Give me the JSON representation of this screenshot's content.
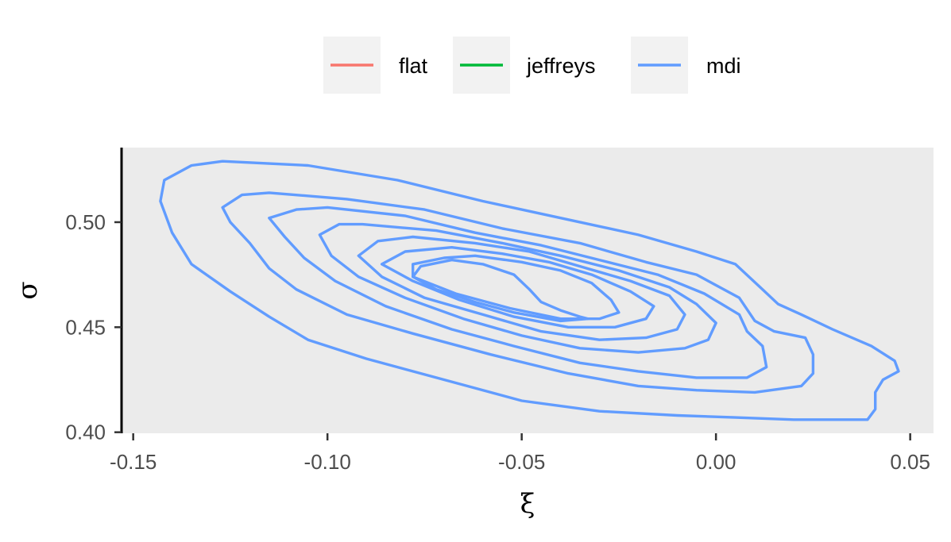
{
  "chart_data": {
    "type": "contour",
    "title": "",
    "xlabel": "ξ",
    "ylabel": "σ",
    "xlim": [
      -0.153,
      0.056
    ],
    "ylim": [
      0.3995,
      0.5355
    ],
    "x_ticks": [
      -0.15,
      -0.1,
      -0.05,
      0.0,
      0.05
    ],
    "x_tick_labels": [
      "-0.15",
      "-0.10",
      "-0.05",
      "0.00",
      "0.05"
    ],
    "y_ticks": [
      0.4,
      0.45,
      0.5
    ],
    "y_tick_labels": [
      "0.40",
      "0.45",
      "0.50"
    ],
    "grid": false,
    "legend_position": "top",
    "legend": [
      {
        "name": "flat",
        "color": "#F8766D"
      },
      {
        "name": "jeffreys",
        "color": "#00BA38"
      },
      {
        "name": "mdi",
        "color": "#619CFF"
      }
    ],
    "series": [
      {
        "name": "mdi",
        "color": "#619CFF",
        "contours": [
          [
            [
              -0.127,
              0.529
            ],
            [
              -0.105,
              0.527
            ],
            [
              -0.082,
              0.52
            ],
            [
              -0.06,
              0.51
            ],
            [
              -0.04,
              0.502
            ],
            [
              -0.02,
              0.494
            ],
            [
              -0.005,
              0.486
            ],
            [
              0.005,
              0.48
            ],
            [
              0.012,
              0.468
            ],
            [
              0.016,
              0.461
            ],
            [
              0.022,
              0.456
            ],
            [
              0.03,
              0.449
            ],
            [
              0.04,
              0.441
            ],
            [
              0.046,
              0.434
            ],
            [
              0.047,
              0.429
            ],
            [
              0.043,
              0.425
            ],
            [
              0.041,
              0.419
            ],
            [
              0.041,
              0.411
            ],
            [
              0.039,
              0.406
            ],
            [
              0.03,
              0.406
            ],
            [
              0.02,
              0.406
            ],
            [
              0.005,
              0.407
            ],
            [
              -0.01,
              0.408
            ],
            [
              -0.03,
              0.41
            ],
            [
              -0.05,
              0.415
            ],
            [
              -0.07,
              0.425
            ],
            [
              -0.09,
              0.435
            ],
            [
              -0.105,
              0.444
            ],
            [
              -0.115,
              0.455
            ],
            [
              -0.125,
              0.467
            ],
            [
              -0.135,
              0.48
            ],
            [
              -0.14,
              0.495
            ],
            [
              -0.143,
              0.51
            ],
            [
              -0.142,
              0.52
            ],
            [
              -0.135,
              0.527
            ],
            [
              -0.127,
              0.529
            ]
          ],
          [
            [
              -0.115,
              0.514
            ],
            [
              -0.095,
              0.511
            ],
            [
              -0.075,
              0.506
            ],
            [
              -0.055,
              0.497
            ],
            [
              -0.035,
              0.49
            ],
            [
              -0.018,
              0.481
            ],
            [
              -0.005,
              0.475
            ],
            [
              0.006,
              0.464
            ],
            [
              0.01,
              0.453
            ],
            [
              0.015,
              0.448
            ],
            [
              0.023,
              0.445
            ],
            [
              0.025,
              0.437
            ],
            [
              0.025,
              0.428
            ],
            [
              0.022,
              0.422
            ],
            [
              0.01,
              0.419
            ],
            [
              -0.005,
              0.42
            ],
            [
              -0.02,
              0.422
            ],
            [
              -0.038,
              0.428
            ],
            [
              -0.058,
              0.437
            ],
            [
              -0.078,
              0.447
            ],
            [
              -0.095,
              0.456
            ],
            [
              -0.108,
              0.468
            ],
            [
              -0.115,
              0.478
            ],
            [
              -0.12,
              0.49
            ],
            [
              -0.125,
              0.5
            ],
            [
              -0.127,
              0.507
            ],
            [
              -0.122,
              0.513
            ],
            [
              -0.115,
              0.514
            ]
          ],
          [
            [
              -0.1,
              0.507
            ],
            [
              -0.08,
              0.503
            ],
            [
              -0.062,
              0.495
            ],
            [
              -0.045,
              0.489
            ],
            [
              -0.03,
              0.482
            ],
            [
              -0.015,
              0.475
            ],
            [
              -0.003,
              0.466
            ],
            [
              0.006,
              0.456
            ],
            [
              0.008,
              0.448
            ],
            [
              0.012,
              0.441
            ],
            [
              0.013,
              0.431
            ],
            [
              0.008,
              0.426
            ],
            [
              -0.005,
              0.426
            ],
            [
              -0.02,
              0.429
            ],
            [
              -0.035,
              0.433
            ],
            [
              -0.052,
              0.441
            ],
            [
              -0.068,
              0.449
            ],
            [
              -0.085,
              0.46
            ],
            [
              -0.098,
              0.472
            ],
            [
              -0.106,
              0.483
            ],
            [
              -0.111,
              0.493
            ],
            [
              -0.115,
              0.502
            ],
            [
              -0.108,
              0.506
            ],
            [
              -0.1,
              0.507
            ]
          ],
          [
            [
              -0.091,
              0.499
            ],
            [
              -0.072,
              0.496
            ],
            [
              -0.055,
              0.49
            ],
            [
              -0.04,
              0.484
            ],
            [
              -0.025,
              0.477
            ],
            [
              -0.012,
              0.469
            ],
            [
              -0.005,
              0.461
            ],
            [
              0.0,
              0.452
            ],
            [
              -0.002,
              0.444
            ],
            [
              -0.008,
              0.44
            ],
            [
              -0.02,
              0.438
            ],
            [
              -0.035,
              0.44
            ],
            [
              -0.05,
              0.446
            ],
            [
              -0.065,
              0.454
            ],
            [
              -0.08,
              0.464
            ],
            [
              -0.092,
              0.474
            ],
            [
              -0.099,
              0.484
            ],
            [
              -0.102,
              0.494
            ],
            [
              -0.097,
              0.499
            ],
            [
              -0.091,
              0.499
            ]
          ],
          [
            [
              -0.078,
              0.493
            ],
            [
              -0.062,
              0.49
            ],
            [
              -0.048,
              0.486
            ],
            [
              -0.035,
              0.479
            ],
            [
              -0.022,
              0.472
            ],
            [
              -0.012,
              0.465
            ],
            [
              -0.008,
              0.456
            ],
            [
              -0.01,
              0.449
            ],
            [
              -0.018,
              0.445
            ],
            [
              -0.03,
              0.444
            ],
            [
              -0.045,
              0.448
            ],
            [
              -0.06,
              0.456
            ],
            [
              -0.075,
              0.464
            ],
            [
              -0.086,
              0.474
            ],
            [
              -0.092,
              0.484
            ],
            [
              -0.087,
              0.491
            ],
            [
              -0.078,
              0.493
            ]
          ],
          [
            [
              -0.068,
              0.488
            ],
            [
              -0.055,
              0.485
            ],
            [
              -0.043,
              0.481
            ],
            [
              -0.032,
              0.475
            ],
            [
              -0.022,
              0.467
            ],
            [
              -0.016,
              0.46
            ],
            [
              -0.018,
              0.454
            ],
            [
              -0.026,
              0.45
            ],
            [
              -0.038,
              0.45
            ],
            [
              -0.052,
              0.455
            ],
            [
              -0.066,
              0.463
            ],
            [
              -0.078,
              0.472
            ],
            [
              -0.086,
              0.48
            ],
            [
              -0.08,
              0.486
            ],
            [
              -0.068,
              0.488
            ]
          ],
          [
            [
              -0.062,
              0.484
            ],
            [
              -0.05,
              0.481
            ],
            [
              -0.04,
              0.477
            ],
            [
              -0.032,
              0.471
            ],
            [
              -0.027,
              0.463
            ],
            [
              -0.025,
              0.457
            ],
            [
              -0.03,
              0.454
            ],
            [
              -0.04,
              0.454
            ],
            [
              -0.053,
              0.459
            ],
            [
              -0.067,
              0.466
            ],
            [
              -0.078,
              0.474
            ],
            [
              -0.078,
              0.48
            ],
            [
              -0.07,
              0.483
            ],
            [
              -0.062,
              0.484
            ]
          ],
          [
            [
              -0.068,
              0.482
            ],
            [
              -0.06,
              0.48
            ],
            [
              -0.052,
              0.475
            ],
            [
              -0.048,
              0.468
            ],
            [
              -0.045,
              0.462
            ],
            [
              -0.04,
              0.458
            ],
            [
              -0.035,
              0.455
            ],
            [
              -0.033,
              0.454
            ],
            [
              -0.04,
              0.453
            ],
            [
              -0.052,
              0.457
            ],
            [
              -0.062,
              0.462
            ],
            [
              -0.072,
              0.468
            ],
            [
              -0.078,
              0.474
            ],
            [
              -0.076,
              0.479
            ],
            [
              -0.068,
              0.482
            ]
          ]
        ]
      }
    ]
  }
}
